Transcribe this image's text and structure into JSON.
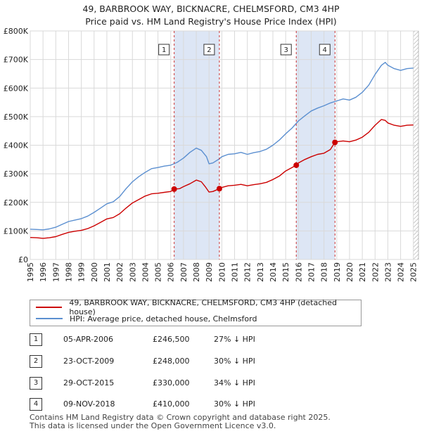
{
  "title_line1": "49, BARBROOK WAY, BICKNACRE, CHELMSFORD, CM3 4HP",
  "title_line2": "Price paid vs. HM Land Registry's House Price Index (HPI)",
  "colors": {
    "property": "#cc0000",
    "hpi": "#5b8fd0",
    "shade": "#dde6f5",
    "marker_line": "#cc3333"
  },
  "chart_data": {
    "type": "line",
    "xlim": [
      1995,
      2025.4
    ],
    "ylim": [
      0,
      800000
    ],
    "yticks": [
      0,
      100000,
      200000,
      300000,
      400000,
      500000,
      600000,
      700000,
      800000
    ],
    "ytick_labels": [
      "£0",
      "£100K",
      "£200K",
      "£300K",
      "£400K",
      "£500K",
      "£600K",
      "£700K",
      "£800K"
    ],
    "xticks": [
      1995,
      1996,
      1997,
      1998,
      1999,
      2000,
      2001,
      2002,
      2003,
      2004,
      2005,
      2006,
      2007,
      2008,
      2009,
      2010,
      2011,
      2012,
      2013,
      2014,
      2015,
      2016,
      2017,
      2018,
      2019,
      2020,
      2021,
      2022,
      2023,
      2024,
      2025
    ],
    "series": [
      {
        "name": "49, BARBROOK WAY, BICKNACRE, CHELMSFORD, CM3 4HP (detached house)",
        "key": "property",
        "points": [
          [
            1995,
            77000
          ],
          [
            1995.5,
            76000
          ],
          [
            1996,
            74000
          ],
          [
            1996.5,
            76000
          ],
          [
            1997,
            80000
          ],
          [
            1997.5,
            88000
          ],
          [
            1998,
            95000
          ],
          [
            1998.5,
            99000
          ],
          [
            1999,
            102000
          ],
          [
            1999.5,
            108000
          ],
          [
            2000,
            118000
          ],
          [
            2000.5,
            130000
          ],
          [
            2001,
            142000
          ],
          [
            2001.5,
            147000
          ],
          [
            2002,
            160000
          ],
          [
            2002.5,
            180000
          ],
          [
            2003,
            198000
          ],
          [
            2003.5,
            210000
          ],
          [
            2004,
            222000
          ],
          [
            2004.5,
            230000
          ],
          [
            2005,
            232000
          ],
          [
            2005.5,
            235000
          ],
          [
            2006,
            238000
          ],
          [
            2006.27,
            246500
          ],
          [
            2006.7,
            248000
          ],
          [
            2007,
            255000
          ],
          [
            2007.5,
            265000
          ],
          [
            2008,
            278000
          ],
          [
            2008.4,
            272000
          ],
          [
            2008.7,
            255000
          ],
          [
            2009,
            236000
          ],
          [
            2009.3,
            238000
          ],
          [
            2009.81,
            248000
          ],
          [
            2010,
            252000
          ],
          [
            2010.5,
            258000
          ],
          [
            2011,
            260000
          ],
          [
            2011.5,
            263000
          ],
          [
            2012,
            258000
          ],
          [
            2012.5,
            262000
          ],
          [
            2013,
            265000
          ],
          [
            2013.5,
            270000
          ],
          [
            2014,
            280000
          ],
          [
            2014.5,
            292000
          ],
          [
            2015,
            310000
          ],
          [
            2015.5,
            322000
          ],
          [
            2015.83,
            330000
          ],
          [
            2016,
            338000
          ],
          [
            2016.5,
            350000
          ],
          [
            2017,
            360000
          ],
          [
            2017.5,
            368000
          ],
          [
            2018,
            372000
          ],
          [
            2018.5,
            385000
          ],
          [
            2018.86,
            410000
          ],
          [
            2019,
            412000
          ],
          [
            2019.5,
            415000
          ],
          [
            2020,
            412000
          ],
          [
            2020.5,
            418000
          ],
          [
            2021,
            428000
          ],
          [
            2021.5,
            445000
          ],
          [
            2022,
            470000
          ],
          [
            2022.5,
            490000
          ],
          [
            2022.8,
            487000
          ],
          [
            2023,
            478000
          ],
          [
            2023.5,
            470000
          ],
          [
            2024,
            466000
          ],
          [
            2024.5,
            470000
          ],
          [
            2025,
            471000
          ]
        ]
      },
      {
        "name": "HPI: Average price, detached house, Chelmsford",
        "key": "hpi",
        "points": [
          [
            1995,
            106000
          ],
          [
            1995.5,
            105000
          ],
          [
            1996,
            104000
          ],
          [
            1996.5,
            107000
          ],
          [
            1997,
            113000
          ],
          [
            1997.5,
            123000
          ],
          [
            1998,
            133000
          ],
          [
            1998.5,
            138000
          ],
          [
            1999,
            143000
          ],
          [
            1999.5,
            152000
          ],
          [
            2000,
            165000
          ],
          [
            2000.5,
            180000
          ],
          [
            2001,
            195000
          ],
          [
            2001.5,
            202000
          ],
          [
            2002,
            220000
          ],
          [
            2002.5,
            248000
          ],
          [
            2003,
            272000
          ],
          [
            2003.5,
            290000
          ],
          [
            2004,
            305000
          ],
          [
            2004.5,
            318000
          ],
          [
            2005,
            322000
          ],
          [
            2005.5,
            327000
          ],
          [
            2006,
            330000
          ],
          [
            2006.5,
            340000
          ],
          [
            2007,
            355000
          ],
          [
            2007.5,
            375000
          ],
          [
            2008,
            390000
          ],
          [
            2008.4,
            382000
          ],
          [
            2008.8,
            360000
          ],
          [
            2009,
            335000
          ],
          [
            2009.3,
            338000
          ],
          [
            2009.8,
            352000
          ],
          [
            2010,
            360000
          ],
          [
            2010.5,
            368000
          ],
          [
            2011,
            370000
          ],
          [
            2011.5,
            375000
          ],
          [
            2012,
            368000
          ],
          [
            2012.5,
            374000
          ],
          [
            2013,
            378000
          ],
          [
            2013.5,
            386000
          ],
          [
            2014,
            400000
          ],
          [
            2014.5,
            418000
          ],
          [
            2015,
            440000
          ],
          [
            2015.5,
            460000
          ],
          [
            2016,
            485000
          ],
          [
            2016.5,
            503000
          ],
          [
            2017,
            520000
          ],
          [
            2017.5,
            530000
          ],
          [
            2018,
            538000
          ],
          [
            2018.5,
            548000
          ],
          [
            2019,
            555000
          ],
          [
            2019.5,
            562000
          ],
          [
            2020,
            558000
          ],
          [
            2020.5,
            568000
          ],
          [
            2021,
            585000
          ],
          [
            2021.5,
            610000
          ],
          [
            2022,
            648000
          ],
          [
            2022.5,
            680000
          ],
          [
            2022.8,
            690000
          ],
          [
            2023,
            680000
          ],
          [
            2023.5,
            668000
          ],
          [
            2024,
            662000
          ],
          [
            2024.5,
            668000
          ],
          [
            2025,
            670000
          ]
        ]
      }
    ],
    "sales": [
      {
        "num": "1",
        "x": 2006.27,
        "price": 246500,
        "date": "05-APR-2006",
        "price_label": "£246,500",
        "hpi": "27% ↓ HPI"
      },
      {
        "num": "2",
        "x": 2009.81,
        "price": 248000,
        "date": "23-OCT-2009",
        "price_label": "£248,000",
        "hpi": "30% ↓ HPI"
      },
      {
        "num": "3",
        "x": 2015.83,
        "price": 330000,
        "date": "29-OCT-2015",
        "price_label": "£330,000",
        "hpi": "34% ↓ HPI"
      },
      {
        "num": "4",
        "x": 2018.86,
        "price": 410000,
        "date": "09-NOV-2018",
        "price_label": "£410,000",
        "hpi": "30% ↓ HPI"
      }
    ],
    "shaded_spans": [
      [
        2006.27,
        2009.81
      ],
      [
        2015.83,
        2018.86
      ]
    ],
    "hatched_span": [
      2025.0,
      2025.4
    ]
  },
  "legend": {
    "property": "49, BARBROOK WAY, BICKNACRE, CHELMSFORD, CM3 4HP (detached house)",
    "hpi": "HPI: Average price, detached house, Chelmsford"
  },
  "table": [
    {
      "num": "1",
      "date": "05-APR-2006",
      "price": "£246,500",
      "hpi": "27% ↓ HPI"
    },
    {
      "num": "2",
      "date": "23-OCT-2009",
      "price": "£248,000",
      "hpi": "30% ↓ HPI"
    },
    {
      "num": "3",
      "date": "29-OCT-2015",
      "price": "£330,000",
      "hpi": "34% ↓ HPI"
    },
    {
      "num": "4",
      "date": "09-NOV-2018",
      "price": "£410,000",
      "hpi": "30% ↓ HPI"
    }
  ],
  "footer_line1": "Contains HM Land Registry data © Crown copyright and database right 2025.",
  "footer_line2": "This data is licensed under the Open Government Licence v3.0."
}
